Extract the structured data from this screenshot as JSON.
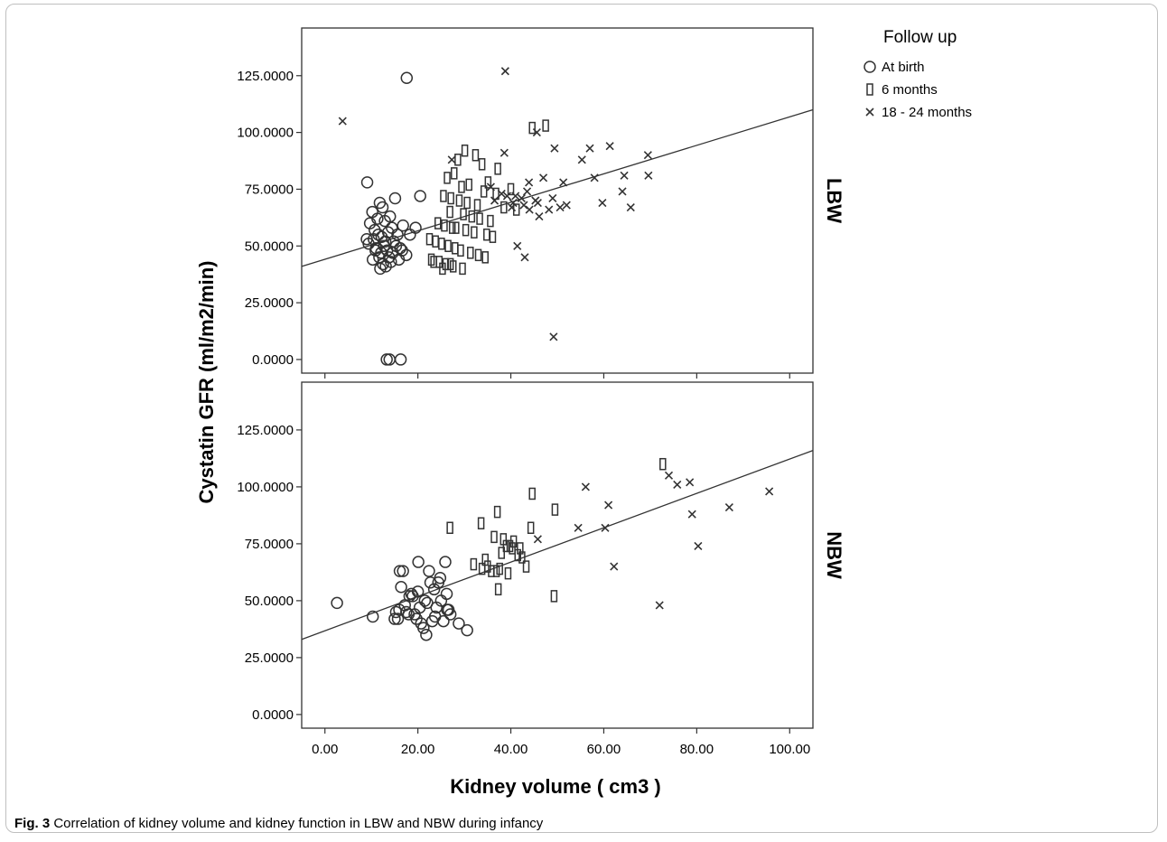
{
  "caption": {
    "lead": "Fig. 3",
    "text": "Correlation of kidney volume and kidney function in LBW and NBW during infancy"
  },
  "chart_data": {
    "type": "scatter",
    "xlabel": "Kidney volume ( cm3 )",
    "ylabel": "Cystatin GFR (ml/m2/min)",
    "xlim": [
      -5,
      105
    ],
    "ylim": [
      -6,
      146
    ],
    "x_ticks": [
      0,
      20,
      40,
      60,
      80,
      100
    ],
    "x_tick_labels": [
      "0.00",
      "20.00",
      "40.00",
      "60.00",
      "80.00",
      "100.00"
    ],
    "y_ticks": [
      0,
      25,
      50,
      75,
      100,
      125
    ],
    "y_tick_labels": [
      "0.0000",
      "25.0000",
      "50.0000",
      "75.0000",
      "100.0000",
      "125.0000"
    ],
    "grid": false,
    "legend": {
      "title": "Follow up",
      "position": "top-right outside",
      "entries": [
        {
          "label": "At birth",
          "marker": "circle"
        },
        {
          "label": "6 months",
          "marker": "rect"
        },
        {
          "label": "18 - 24 months",
          "marker": "x"
        }
      ]
    },
    "panels": [
      {
        "label": "LBW",
        "fit_line": {
          "x": [
            -5,
            105
          ],
          "y": [
            41,
            110
          ]
        },
        "series": [
          {
            "name": "At birth",
            "marker": "circle",
            "x": [
              17.6,
              9.1,
              9.0,
              13.3,
              13.9,
              16.3,
              20.5,
              15.1,
              11.8,
              12.4,
              10.2,
              14.0,
              11.3,
              12.9,
              9.7,
              16.8,
              14.4,
              10.7,
              13.6,
              11.5,
              15.6,
              12.2,
              10.5,
              14.8,
              13.0,
              9.4,
              15.3,
              12.7,
              11.0,
              16.2,
              13.4,
              10.9,
              14.6,
              12.1,
              17.5,
              11.7,
              13.8,
              15.9,
              10.3,
              14.2,
              12.5,
              19.5,
              18.3,
              16.6,
              11.9,
              13.1
            ],
            "y": [
              124,
              78,
              53,
              0,
              0,
              0,
              72,
              71,
              69,
              67,
              65,
              63,
              62,
              61,
              60,
              59,
              58,
              57,
              56,
              55,
              55,
              54,
              53,
              52,
              52,
              51,
              50,
              50,
              49,
              49,
              48,
              48,
              47,
              47,
              46,
              45,
              45,
              44,
              44,
              43,
              42,
              58,
              55,
              48,
              40,
              41
            ]
          },
          {
            "name": "6 months",
            "marker": "rect",
            "x": [
              44.6,
              47.5,
              28.6,
              30.1,
              32.4,
              26.3,
              27.8,
              33.8,
              37.2,
              35.1,
              40.0,
              29.4,
              31.0,
              34.2,
              36.8,
              25.5,
              27.1,
              28.9,
              30.6,
              32.8,
              38.5,
              41.2,
              26.9,
              29.8,
              31.6,
              33.3,
              35.6,
              24.3,
              25.7,
              27.4,
              28.2,
              30.3,
              32.1,
              34.8,
              36.1,
              22.5,
              23.8,
              25.1,
              26.5,
              28.0,
              29.2,
              31.3,
              33.0,
              34.5,
              22.9,
              24.6,
              26.0,
              27.6,
              29.6,
              23.4,
              25.3,
              27.0
            ],
            "y": [
              102,
              103,
              88,
              92,
              90,
              80,
              82,
              86,
              84,
              78,
              75,
              76,
              77,
              74,
              73,
              72,
              71,
              70,
              69,
              68,
              67,
              66,
              65,
              64,
              63,
              62,
              61,
              60,
              59,
              58,
              58,
              57,
              56,
              55,
              54,
              53,
              52,
              51,
              50,
              49,
              48,
              47,
              46,
              45,
              44,
              43,
              42,
              41,
              40,
              43,
              40,
              42
            ]
          },
          {
            "name": "18 - 24 months",
            "marker": "x",
            "x": [
              38.8,
              3.8,
              45.6,
              49.4,
              57.0,
              61.3,
              55.3,
              69.5,
              27.3,
              38.6,
              47.0,
              64.4,
              69.6,
              51.3,
              58.0,
              64.0,
              59.7,
              65.8,
              41.0,
              42.3,
              43.5,
              49.0,
              45.3,
              52.0,
              46.1,
              40.2,
              44.0,
              48.2,
              50.6,
              35.7,
              38.0,
              36.5,
              40.5,
              42.8,
              41.4,
              45.8,
              43.0,
              43.9,
              49.2,
              39.2
            ],
            "y": [
              127,
              105,
              100,
              93,
              93,
              94,
              88,
              90,
              88,
              91,
              80,
              81,
              81,
              78,
              80,
              74,
              69,
              67,
              72,
              71,
              74,
              71,
              70,
              68,
              63,
              67,
              66,
              66,
              67,
              76,
              73,
              70,
              69,
              68,
              50,
              69,
              45,
              78,
              10,
              72
            ]
          }
        ]
      },
      {
        "label": "NBW",
        "fit_line": {
          "x": [
            -5,
            105
          ],
          "y": [
            33,
            116
          ]
        },
        "series": [
          {
            "name": "At birth",
            "marker": "circle",
            "x": [
              2.6,
              10.3,
              15.0,
              15.7,
              16.1,
              16.8,
              17.5,
              18.0,
              18.6,
              19.3,
              20.1,
              20.7,
              21.2,
              21.8,
              22.4,
              23.1,
              23.7,
              24.4,
              25.0,
              25.9,
              26.3,
              27.0,
              28.8,
              30.6,
              16.4,
              18.9,
              20.0,
              22.0,
              24.0,
              26.2,
              15.3,
              17.2,
              19.7,
              21.5,
              23.5,
              25.5,
              16.0,
              18.2,
              20.4,
              22.7,
              24.8,
              26.6
            ],
            "y": [
              49,
              43,
              42,
              42,
              63,
              63,
              45,
              44,
              53,
              44,
              67,
              40,
              38,
              35,
              63,
              41,
              43,
              58,
              50,
              67,
              46,
              44,
              40,
              37,
              56,
              52,
              54,
              49,
              47,
              53,
              45,
              48,
              42,
              50,
              55,
              41,
              46,
              52,
              47,
              58,
              60,
              46
            ]
          },
          {
            "name": "6 months",
            "marker": "rect",
            "x": [
              72.7,
              26.9,
              33.6,
              37.1,
              39.0,
              44.6,
              49.5,
              36.4,
              38.4,
              40.6,
              42.0,
              44.3,
              35.8,
              37.6,
              39.8,
              41.5,
              43.3,
              32.0,
              33.8,
              35.0,
              36.9,
              39.4,
              42.4,
              37.3,
              49.3,
              34.5,
              38.0,
              40.3
            ],
            "y": [
              110,
              82,
              84,
              89,
              74,
              97,
              90,
              78,
              77,
              76,
              73,
              82,
              63,
              64,
              74,
              70,
              65,
              66,
              64,
              65,
              63,
              62,
              69,
              55,
              52,
              68,
              71,
              73
            ]
          },
          {
            "name": "18 - 24 months",
            "marker": "x",
            "x": [
              74.0,
              75.8,
              78.5,
              95.6,
              87.0,
              56.1,
              61.0,
              60.3,
              79.0,
              54.5,
              45.8,
              80.3,
              62.2,
              72.0
            ],
            "y": [
              105,
              101,
              102,
              98,
              91,
              100,
              92,
              82,
              88,
              82,
              77,
              74,
              65,
              48
            ]
          }
        ]
      }
    ]
  }
}
